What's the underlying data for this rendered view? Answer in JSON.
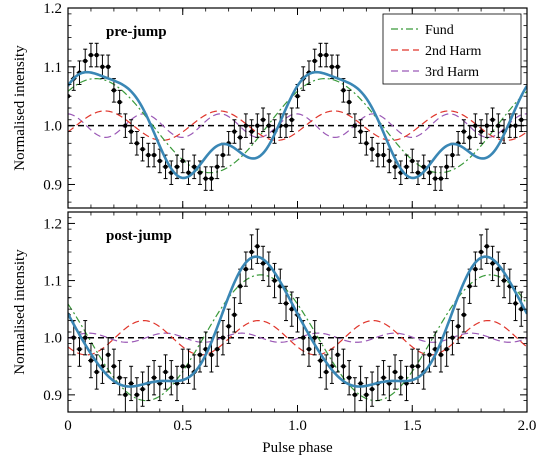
{
  "chart_data": [
    {
      "type": "line",
      "panel_label": "pre-jump",
      "xlabel": "",
      "ylabel": "Normalised intensity",
      "xlim": [
        0,
        2
      ],
      "ylim": [
        0.86,
        1.2
      ],
      "xticks": [
        0,
        0.5,
        1.0,
        1.5,
        2.0
      ],
      "xtick_labels": [
        "",
        "",
        "",
        "",
        ""
      ],
      "yticks": [
        0.9,
        1.0,
        1.1,
        1.2
      ],
      "ytick_labels": [
        "0.9",
        "1.0",
        "1.1",
        "1.2"
      ],
      "reference_line": 1.0,
      "legend": {
        "placement": "top-right",
        "entries": [
          {
            "label": "Fund",
            "series": "fund"
          },
          {
            "label": "2nd Harm",
            "series": "harm2"
          },
          {
            "label": "3rd Harm",
            "series": "harm3"
          }
        ]
      },
      "model": {
        "baseline": 1.0,
        "fund": {
          "amplitude": 0.08,
          "peak_phase": 0.12
        },
        "harm2": {
          "amplitude": 0.025,
          "peak_phase": 0.16
        },
        "harm3": {
          "amplitude": 0.02,
          "peak_phase": 0.33
        }
      },
      "data_points": {
        "x": [
          0.0,
          0.025,
          0.05,
          0.075,
          0.1,
          0.125,
          0.15,
          0.175,
          0.2,
          0.225,
          0.25,
          0.275,
          0.3,
          0.325,
          0.35,
          0.375,
          0.4,
          0.425,
          0.45,
          0.475,
          0.5,
          0.525,
          0.55,
          0.575,
          0.6,
          0.625,
          0.65,
          0.675,
          0.7,
          0.725,
          0.75,
          0.775,
          0.8,
          0.825,
          0.85,
          0.875,
          0.9,
          0.925,
          0.95,
          0.975
        ],
        "y": [
          1.05,
          1.08,
          1.09,
          1.11,
          1.12,
          1.12,
          1.1,
          1.1,
          1.06,
          1.04,
          1.0,
          0.99,
          0.97,
          0.96,
          0.95,
          0.95,
          0.94,
          0.93,
          0.92,
          0.93,
          0.94,
          0.92,
          0.93,
          0.92,
          0.91,
          0.91,
          0.93,
          0.95,
          0.97,
          0.99,
          0.98,
          1.0,
          0.99,
          1.0,
          1.01,
          1.0,
          0.99,
          1.0,
          1.0,
          1.01
        ],
        "yerr": 0.02,
        "xerr": 0.0125
      },
      "colors": {
        "total": "#3a87b5",
        "fund": "#3a9a3a",
        "harm2": "#e0352b",
        "harm3": "#9b59b6",
        "data": "#000000"
      }
    },
    {
      "type": "line",
      "panel_label": "post-jump",
      "xlabel": "Pulse phase",
      "ylabel": "Normalised intensity",
      "xlim": [
        0,
        2
      ],
      "ylim": [
        0.87,
        1.22
      ],
      "xticks": [
        0,
        0.5,
        1.0,
        1.5,
        2.0
      ],
      "xtick_labels": [
        "0",
        "0.5",
        "1.0",
        "1.5",
        "2.0"
      ],
      "yticks": [
        0.9,
        1.0,
        1.1,
        1.2
      ],
      "ytick_labels": [
        "0.9",
        "1.0",
        "1.1",
        "1.2"
      ],
      "reference_line": 1.0,
      "model": {
        "baseline": 1.0,
        "fund": {
          "amplitude": 0.11,
          "peak_phase": 0.84
        },
        "harm2": {
          "amplitude": 0.03,
          "peak_phase": 0.83
        },
        "harm3": {
          "amplitude": 0.008,
          "peak_phase": 0.09
        }
      },
      "data_points": {
        "x": [
          0.0,
          0.025,
          0.05,
          0.075,
          0.1,
          0.125,
          0.15,
          0.175,
          0.2,
          0.225,
          0.25,
          0.275,
          0.3,
          0.325,
          0.35,
          0.375,
          0.4,
          0.425,
          0.45,
          0.475,
          0.5,
          0.525,
          0.55,
          0.575,
          0.6,
          0.625,
          0.65,
          0.675,
          0.7,
          0.725,
          0.75,
          0.775,
          0.8,
          0.825,
          0.85,
          0.875,
          0.9,
          0.925,
          0.95,
          0.975
        ],
        "y": [
          1.04,
          1.0,
          0.98,
          1.0,
          0.96,
          0.94,
          0.95,
          0.97,
          0.95,
          0.93,
          0.9,
          0.92,
          0.9,
          0.91,
          0.92,
          0.93,
          0.92,
          0.94,
          0.93,
          0.92,
          0.95,
          0.95,
          0.94,
          0.97,
          0.98,
          0.97,
          0.98,
          1.0,
          1.02,
          1.04,
          1.09,
          1.12,
          1.15,
          1.16,
          1.13,
          1.12,
          1.1,
          1.09,
          1.06,
          1.05
        ],
        "yerr": 0.03,
        "xerr": 0.0125
      },
      "colors": {
        "total": "#3a87b5",
        "fund": "#3a9a3a",
        "harm2": "#e0352b",
        "harm3": "#9b59b6",
        "data": "#000000"
      }
    }
  ]
}
